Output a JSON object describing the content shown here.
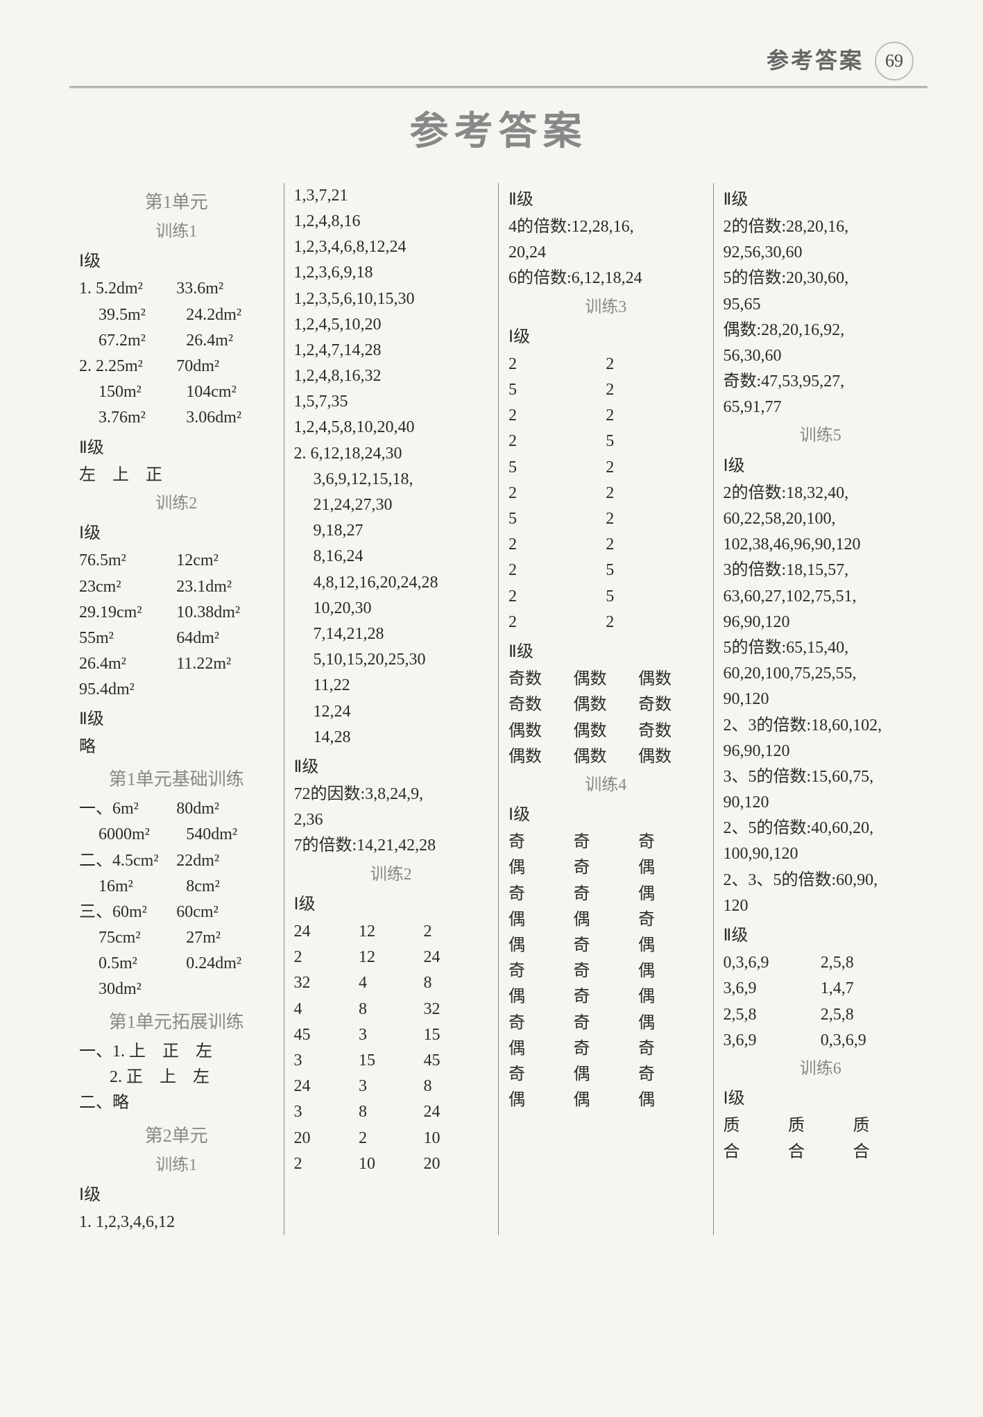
{
  "header": {
    "label": "参考答案",
    "page": "69"
  },
  "title": "参考答案",
  "col1": {
    "unit1": "第1单元",
    "train1": "训练1",
    "level1": "Ⅰ级",
    "q1_rows": [
      [
        "1. 5.2dm²",
        "33.6m²"
      ],
      [
        "39.5m²",
        "24.2dm²"
      ],
      [
        "67.2m²",
        "26.4m²"
      ],
      [
        "2. 2.25m²",
        "70dm²"
      ],
      [
        "150m²",
        "104cm²"
      ],
      [
        "3.76m²",
        "3.06dm²"
      ]
    ],
    "level2": "Ⅱ级",
    "views": "左　上　正",
    "train2": "训练2",
    "level1b": "Ⅰ级",
    "train2_rows": [
      [
        "76.5m²",
        "12cm²"
      ],
      [
        "23cm²",
        "23.1dm²"
      ],
      [
        "29.19cm²",
        "10.38dm²"
      ],
      [
        "55m²",
        "64dm²"
      ],
      [
        "26.4m²",
        "11.22m²"
      ],
      [
        "95.4dm²",
        ""
      ]
    ],
    "level2b": "Ⅱ级",
    "omit": "略",
    "u1base": "第1单元基础训练",
    "base_rows": [
      [
        "一、6m²",
        "80dm²"
      ],
      [
        "6000m²",
        "540dm²"
      ],
      [
        "二、4.5cm²",
        "22dm²"
      ],
      [
        "16m²",
        "8cm²"
      ],
      [
        "三、60m²",
        "60cm²"
      ],
      [
        "75cm²",
        "27m²"
      ],
      [
        "0.5m²",
        "0.24dm²"
      ],
      [
        "30dm²",
        ""
      ]
    ],
    "u1ext": "第1单元拓展训练",
    "ext1": "一、1. 上　正　左",
    "ext2": "2. 正　上　左",
    "ext3": "二、略",
    "unit2": "第2单元",
    "u2train1": "训练1",
    "u2l1": "Ⅰ级",
    "u2q1": "1. 1,2,3,4,6,12"
  },
  "col2": {
    "factor_lines": [
      "1,3,7,21",
      "1,2,4,8,16",
      "1,2,3,4,6,8,12,24",
      "1,2,3,6,9,18",
      "1,2,3,5,6,10,15,30",
      "1,2,4,5,10,20",
      "1,2,4,7,14,28",
      "1,2,4,8,16,32",
      "1,5,7,35",
      "1,2,4,5,8,10,20,40"
    ],
    "mult_lines": [
      "2. 6,12,18,24,30",
      "3,6,9,12,15,18,",
      "21,24,27,30",
      "9,18,27",
      "8,16,24",
      "4,8,12,16,20,24,28",
      "10,20,30",
      "7,14,21,28",
      "5,10,15,20,25,30",
      "11,22",
      "12,24",
      "14,28"
    ],
    "level2": "Ⅱ级",
    "f72": "72的因数:3,8,24,9,",
    "f72b": "2,36",
    "m7": "7的倍数:14,21,42,28",
    "train2": "训练2",
    "level1": "Ⅰ级",
    "t2_rows": [
      [
        "24",
        "12",
        "2"
      ],
      [
        "2",
        "12",
        "24"
      ],
      [
        "32",
        "4",
        "8"
      ],
      [
        "4",
        "8",
        "32"
      ],
      [
        "45",
        "3",
        "15"
      ],
      [
        "3",
        "15",
        "45"
      ],
      [
        "24",
        "3",
        "8"
      ],
      [
        "3",
        "8",
        "24"
      ],
      [
        "20",
        "2",
        "10"
      ],
      [
        "2",
        "10",
        "20"
      ]
    ]
  },
  "col3": {
    "level2": "Ⅱ级",
    "m4": "4的倍数:12,28,16,",
    "m4b": "20,24",
    "m6": "6的倍数:6,12,18,24",
    "train3": "训练3",
    "level1": "Ⅰ级",
    "t3_rows": [
      [
        "2",
        "2"
      ],
      [
        "5",
        "2"
      ],
      [
        "2",
        "2"
      ],
      [
        "2",
        "5"
      ],
      [
        "5",
        "2"
      ],
      [
        "2",
        "2"
      ],
      [
        "5",
        "2"
      ],
      [
        "2",
        "2"
      ],
      [
        "2",
        "5"
      ],
      [
        "2",
        "5"
      ],
      [
        "2",
        "2"
      ]
    ],
    "level2b": "Ⅱ级",
    "parity_rows": [
      [
        "奇数",
        "偶数",
        "偶数"
      ],
      [
        "奇数",
        "偶数",
        "奇数"
      ],
      [
        "偶数",
        "偶数",
        "奇数"
      ],
      [
        "偶数",
        "偶数",
        "偶数"
      ]
    ],
    "train4": "训练4",
    "level1b": "Ⅰ级",
    "t4_rows": [
      [
        "奇",
        "奇",
        "奇"
      ],
      [
        "偶",
        "奇",
        "偶"
      ],
      [
        "奇",
        "奇",
        "偶"
      ],
      [
        "偶",
        "偶",
        "奇"
      ],
      [
        "偶",
        "奇",
        "偶"
      ],
      [
        "奇",
        "奇",
        "偶"
      ],
      [
        "偶",
        "奇",
        "偶"
      ],
      [
        "奇",
        "奇",
        "偶"
      ],
      [
        "偶",
        "奇",
        "奇"
      ],
      [
        "奇",
        "偶",
        "奇"
      ],
      [
        "偶",
        "偶",
        "偶"
      ]
    ]
  },
  "col4": {
    "level2": "Ⅱ级",
    "m2": "2的倍数:28,20,16,",
    "m2b": "92,56,30,60",
    "m5": "5的倍数:20,30,60,",
    "m5b": "95,65",
    "even": "偶数:28,20,16,92,",
    "evenb": "56,30,60",
    "odd": "奇数:47,53,95,27,",
    "oddb": "65,91,77",
    "train5": "训练5",
    "level1": "Ⅰ级",
    "m2_l": "2的倍数:18,32,40,",
    "m2_l2": "60,22,58,20,100,",
    "m2_l3": "102,38,46,96,90,120",
    "m3_l": "3的倍数:18,15,57,",
    "m3_l2": "63,60,27,102,75,51,",
    "m3_l3": "96,90,120",
    "m5_l": "5的倍数:65,15,40,",
    "m5_l2": "60,20,100,75,25,55,",
    "m5_l3": "90,120",
    "m23": "2、3的倍数:18,60,102,",
    "m23b": "96,90,120",
    "m35": "3、5的倍数:15,60,75,",
    "m35b": "90,120",
    "m25": "2、5的倍数:40,60,20,",
    "m25b": "100,90,120",
    "m235": "2、3、5的倍数:60,90,",
    "m235b": "120",
    "level2b": "Ⅱ级",
    "digit_rows": [
      [
        "0,3,6,9",
        "2,5,8"
      ],
      [
        "3,6,9",
        "1,4,7"
      ],
      [
        "2,5,8",
        "2,5,8"
      ],
      [
        "3,6,9",
        "0,3,6,9"
      ]
    ],
    "train6": "训练6",
    "level1b": "Ⅰ级",
    "t6_rows": [
      [
        "质",
        "质",
        "质"
      ],
      [
        "合",
        "合",
        "合"
      ]
    ]
  }
}
